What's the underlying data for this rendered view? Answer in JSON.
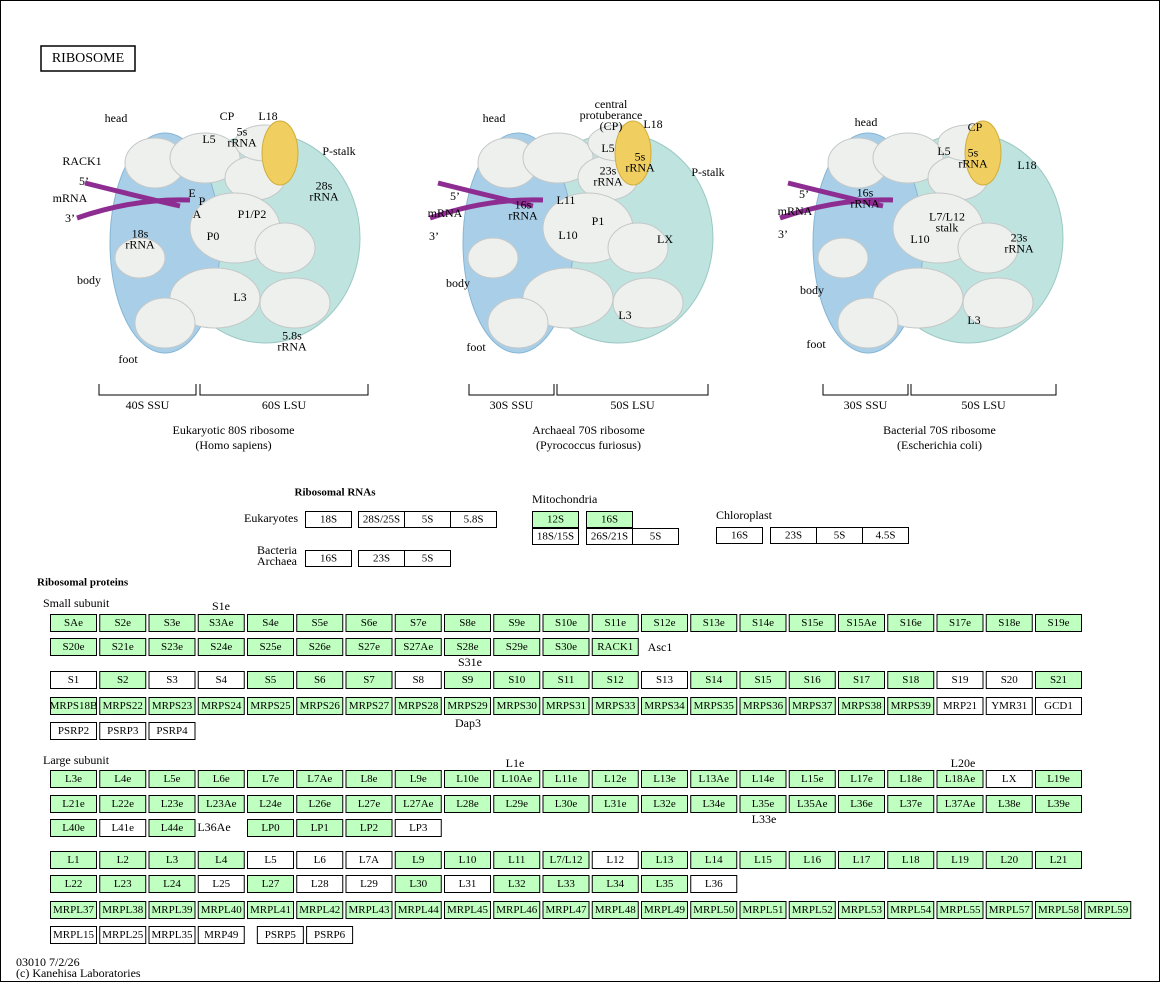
{
  "title": "RIBOSOME",
  "illustrations": [
    {
      "labels": [
        [
          "head"
        ],
        [
          "CP"
        ],
        [
          "L18"
        ],
        [
          "L5"
        ],
        [
          "5s",
          "rRNA"
        ],
        [
          "P-stalk"
        ],
        [
          "RACK1"
        ],
        [
          "5’"
        ],
        [
          "mRNA"
        ],
        [
          "3’"
        ],
        [
          "E"
        ],
        [
          "P"
        ],
        [
          "A"
        ],
        [
          "28s",
          "rRNA"
        ],
        [
          "P1/P2"
        ],
        [
          "P0"
        ],
        [
          "18s",
          "rRNA"
        ],
        [
          "body"
        ],
        [
          "L3"
        ],
        [
          "5.8s",
          "rRNA"
        ],
        [
          "foot"
        ]
      ],
      "subunits": [
        "40S SSU",
        "60S LSU"
      ],
      "name": "Eukaryotic 80S ribosome",
      "species": "(Homo sapiens)"
    },
    {
      "labels": [
        [
          "head"
        ],
        [
          "central",
          "protuberance",
          "(CP)"
        ],
        [
          "L18"
        ],
        [
          "L5"
        ],
        [
          "5s",
          "rRNA"
        ],
        [
          "23s",
          "rRNA"
        ],
        [
          "P-stalk"
        ],
        [
          "5’"
        ],
        [
          "16s",
          "rRNA"
        ],
        [
          "mRNA"
        ],
        [
          "L11"
        ],
        [
          "3’"
        ],
        [
          "P1"
        ],
        [
          "L10"
        ],
        [
          "LX"
        ],
        [
          "body"
        ],
        [
          "L3"
        ],
        [
          "foot"
        ]
      ],
      "subunits": [
        "30S SSU",
        "50S LSU"
      ],
      "name": "Archaeal 70S ribosome",
      "species": "(Pyrococcus furiosus)"
    },
    {
      "labels": [
        [
          "head"
        ],
        [
          "CP"
        ],
        [
          "L5"
        ],
        [
          "5s",
          "rRNA"
        ],
        [
          "L18"
        ],
        [
          "5’"
        ],
        [
          "16s",
          "rRNA"
        ],
        [
          "mRNA"
        ],
        [
          "L7/L12",
          "stalk"
        ],
        [
          "3’"
        ],
        [
          "L10"
        ],
        [
          "23s",
          "rRNA"
        ],
        [
          "body"
        ],
        [
          "L3"
        ],
        [
          "foot"
        ]
      ],
      "subunits": [
        "30S SSU",
        "50S LSU"
      ],
      "name": "Bacterial 70S ribosome",
      "species": "(Escherichia coli)"
    }
  ],
  "rna": {
    "heading": "Ribosomal RNAs",
    "eukaryotes": "Eukaryotes",
    "bacteria": [
      "Bacteria",
      "Archaea"
    ],
    "mitochondria": "Mitochondria",
    "chloroplast": "Chloroplast",
    "boxes": [
      [
        "18S",
        "#ffffff"
      ],
      [
        "28S/25S",
        "#ffffff"
      ],
      [
        "5S",
        "#ffffff"
      ],
      [
        "5.8S",
        "#ffffff"
      ],
      [
        "16S",
        "#ffffff"
      ],
      [
        "23S",
        "#ffffff"
      ],
      [
        "5S",
        "#ffffff"
      ],
      [
        "12S",
        "#bfffbf"
      ],
      [
        "16S",
        "#bfffbf"
      ],
      [
        "18S/15S",
        "#ffffff"
      ],
      [
        "26S/21S",
        "#ffffff"
      ],
      [
        "5S",
        "#ffffff"
      ],
      [
        "16S",
        "#ffffff"
      ],
      [
        "23S",
        "#ffffff"
      ],
      [
        "5S",
        "#ffffff"
      ],
      [
        "4.5S",
        "#ffffff"
      ]
    ]
  },
  "proteins": {
    "heading": "Ribosomal proteins",
    "small": "Small subunit",
    "large": "Large subunit",
    "rows": [
      [
        [
          "SAe",
          "#bfffbf"
        ],
        [
          "S2e",
          "#bfffbf"
        ],
        [
          "S3e",
          "#bfffbf"
        ],
        [
          "S3Ae",
          "#bfffbf"
        ],
        [
          "S4e",
          "#bfffbf"
        ],
        [
          "S5e",
          "#bfffbf"
        ],
        [
          "S6e",
          "#bfffbf"
        ],
        [
          "S7e",
          "#bfffbf"
        ],
        [
          "S8e",
          "#bfffbf"
        ],
        [
          "S9e",
          "#bfffbf"
        ],
        [
          "S10e",
          "#bfffbf"
        ],
        [
          "S11e",
          "#bfffbf"
        ],
        [
          "S12e",
          "#bfffbf"
        ],
        [
          "S13e",
          "#bfffbf"
        ],
        [
          "S14e",
          "#bfffbf"
        ],
        [
          "S15e",
          "#bfffbf"
        ],
        [
          "S15Ae",
          "#bfffbf"
        ],
        [
          "S16e",
          "#bfffbf"
        ],
        [
          "S17e",
          "#bfffbf"
        ],
        [
          "S18e",
          "#bfffbf"
        ],
        [
          "S19e",
          "#bfffbf"
        ]
      ],
      [
        [
          "S20e",
          "#bfffbf"
        ],
        [
          "S21e",
          "#bfffbf"
        ],
        [
          "S23e",
          "#bfffbf"
        ],
        [
          "S24e",
          "#bfffbf"
        ],
        [
          "S25e",
          "#bfffbf"
        ],
        [
          "S26e",
          "#bfffbf"
        ],
        [
          "S27e",
          "#bfffbf"
        ],
        [
          "S27Ae",
          "#bfffbf"
        ],
        [
          "S28e",
          "#bfffbf"
        ],
        [
          "S29e",
          "#bfffbf"
        ],
        [
          "S30e",
          "#bfffbf"
        ],
        [
          "RACK1",
          "#bfffbf"
        ]
      ],
      [
        [
          "S1",
          "#ffffff"
        ],
        [
          "S2",
          "#bfffbf"
        ],
        [
          "S3",
          "#ffffff"
        ],
        [
          "S4",
          "#ffffff"
        ],
        [
          "S5",
          "#bfffbf"
        ],
        [
          "S6",
          "#bfffbf"
        ],
        [
          "S7",
          "#bfffbf"
        ],
        [
          "S8",
          "#ffffff"
        ],
        [
          "S9",
          "#bfffbf"
        ],
        [
          "S10",
          "#bfffbf"
        ],
        [
          "S11",
          "#bfffbf"
        ],
        [
          "S12",
          "#bfffbf"
        ],
        [
          "S13",
          "#ffffff"
        ],
        [
          "S14",
          "#bfffbf"
        ],
        [
          "S15",
          "#bfffbf"
        ],
        [
          "S16",
          "#bfffbf"
        ],
        [
          "S17",
          "#bfffbf"
        ],
        [
          "S18",
          "#bfffbf"
        ],
        [
          "S19",
          "#ffffff"
        ],
        [
          "S20",
          "#ffffff"
        ],
        [
          "S21",
          "#bfffbf"
        ]
      ],
      [
        [
          "MRPS18B",
          "#bfffbf"
        ],
        [
          "MRPS22",
          "#bfffbf"
        ],
        [
          "MRPS23",
          "#bfffbf"
        ],
        [
          "MRPS24",
          "#bfffbf"
        ],
        [
          "MRPS25",
          "#bfffbf"
        ],
        [
          "MRPS26",
          "#bfffbf"
        ],
        [
          "MRPS27",
          "#bfffbf"
        ],
        [
          "MRPS28",
          "#bfffbf"
        ],
        [
          "MRPS29",
          "#bfffbf"
        ],
        [
          "MRPS30",
          "#bfffbf"
        ],
        [
          "MRPS31",
          "#bfffbf"
        ],
        [
          "MRPS33",
          "#bfffbf"
        ],
        [
          "MRPS34",
          "#bfffbf"
        ],
        [
          "MRPS35",
          "#bfffbf"
        ],
        [
          "MRPS36",
          "#bfffbf"
        ],
        [
          "MRPS37",
          "#bfffbf"
        ],
        [
          "MRPS38",
          "#bfffbf"
        ],
        [
          "MRPS39",
          "#bfffbf"
        ],
        [
          "MRP21",
          "#ffffff"
        ],
        [
          "YMR31",
          "#ffffff"
        ],
        [
          "GCD1",
          "#ffffff"
        ]
      ],
      [
        [
          "PSRP2",
          "#ffffff"
        ],
        [
          "PSRP3",
          "#ffffff"
        ],
        [
          "PSRP4",
          "#ffffff"
        ]
      ],
      [
        [
          "L3e",
          "#bfffbf"
        ],
        [
          "L4e",
          "#bfffbf"
        ],
        [
          "L5e",
          "#bfffbf"
        ],
        [
          "L6e",
          "#bfffbf"
        ],
        [
          "L7e",
          "#bfffbf"
        ],
        [
          "L7Ae",
          "#bfffbf"
        ],
        [
          "L8e",
          "#bfffbf"
        ],
        [
          "L9e",
          "#bfffbf"
        ],
        [
          "L10e",
          "#bfffbf"
        ],
        [
          "L10Ae",
          "#bfffbf"
        ],
        [
          "L11e",
          "#bfffbf"
        ],
        [
          "L12e",
          "#bfffbf"
        ],
        [
          "L13e",
          "#bfffbf"
        ],
        [
          "L13Ae",
          "#bfffbf"
        ],
        [
          "L14e",
          "#bfffbf"
        ],
        [
          "L15e",
          "#bfffbf"
        ],
        [
          "L17e",
          "#bfffbf"
        ],
        [
          "L18e",
          "#bfffbf"
        ],
        [
          "L18Ae",
          "#bfffbf"
        ],
        [
          "LX",
          "#ffffff"
        ],
        [
          "L19e",
          "#bfffbf"
        ]
      ],
      [
        [
          "L21e",
          "#bfffbf"
        ],
        [
          "L22e",
          "#bfffbf"
        ],
        [
          "L23e",
          "#bfffbf"
        ],
        [
          "L23Ae",
          "#bfffbf"
        ],
        [
          "L24e",
          "#bfffbf"
        ],
        [
          "L26e",
          "#bfffbf"
        ],
        [
          "L27e",
          "#bfffbf"
        ],
        [
          "L27Ae",
          "#bfffbf"
        ],
        [
          "L28e",
          "#bfffbf"
        ],
        [
          "L29e",
          "#bfffbf"
        ],
        [
          "L30e",
          "#bfffbf"
        ],
        [
          "L31e",
          "#bfffbf"
        ],
        [
          "L32e",
          "#bfffbf"
        ],
        [
          "L34e",
          "#bfffbf"
        ],
        [
          "L35e",
          "#bfffbf"
        ],
        [
          "L35Ae",
          "#bfffbf"
        ],
        [
          "L36e",
          "#bfffbf"
        ],
        [
          "L37e",
          "#bfffbf"
        ],
        [
          "L37Ae",
          "#bfffbf"
        ],
        [
          "L38e",
          "#bfffbf"
        ],
        [
          "L39e",
          "#bfffbf"
        ]
      ],
      [
        [
          "L40e",
          "#bfffbf"
        ],
        [
          "L41e",
          "#ffffff"
        ],
        [
          "L44e",
          "#bfffbf"
        ],
        [
          "LP0",
          "#bfffbf"
        ],
        [
          "LP1",
          "#bfffbf"
        ],
        [
          "LP2",
          "#bfffbf"
        ],
        [
          "LP3",
          "#ffffff"
        ]
      ],
      [
        [
          "L1",
          "#bfffbf"
        ],
        [
          "L2",
          "#bfffbf"
        ],
        [
          "L3",
          "#bfffbf"
        ],
        [
          "L4",
          "#bfffbf"
        ],
        [
          "L5",
          "#ffffff"
        ],
        [
          "L6",
          "#ffffff"
        ],
        [
          "L7A",
          "#ffffff"
        ],
        [
          "L9",
          "#bfffbf"
        ],
        [
          "L10",
          "#bfffbf"
        ],
        [
          "L11",
          "#bfffbf"
        ],
        [
          "L7/L12",
          "#bfffbf"
        ],
        [
          "L12",
          "#ffffff"
        ],
        [
          "L13",
          "#bfffbf"
        ],
        [
          "L14",
          "#bfffbf"
        ],
        [
          "L15",
          "#bfffbf"
        ],
        [
          "L16",
          "#bfffbf"
        ],
        [
          "L17",
          "#bfffbf"
        ],
        [
          "L18",
          "#bfffbf"
        ],
        [
          "L19",
          "#bfffbf"
        ],
        [
          "L20",
          "#bfffbf"
        ],
        [
          "L21",
          "#bfffbf"
        ]
      ],
      [
        [
          "L22",
          "#bfffbf"
        ],
        [
          "L23",
          "#bfffbf"
        ],
        [
          "L24",
          "#bfffbf"
        ],
        [
          "L25",
          "#ffffff"
        ],
        [
          "L27",
          "#bfffbf"
        ],
        [
          "L28",
          "#ffffff"
        ],
        [
          "L29",
          "#ffffff"
        ],
        [
          "L30",
          "#bfffbf"
        ],
        [
          "L31",
          "#ffffff"
        ],
        [
          "L32",
          "#bfffbf"
        ],
        [
          "L33",
          "#bfffbf"
        ],
        [
          "L34",
          "#bfffbf"
        ],
        [
          "L35",
          "#bfffbf"
        ],
        [
          "L36",
          "#ffffff"
        ]
      ],
      [
        [
          "MRPL37",
          "#bfffbf"
        ],
        [
          "MRPL38",
          "#bfffbf"
        ],
        [
          "MRPL39",
          "#bfffbf"
        ],
        [
          "MRPL40",
          "#bfffbf"
        ],
        [
          "MRPL41",
          "#bfffbf"
        ],
        [
          "MRPL42",
          "#bfffbf"
        ],
        [
          "MRPL43",
          "#bfffbf"
        ],
        [
          "MRPL44",
          "#bfffbf"
        ],
        [
          "MRPL45",
          "#bfffbf"
        ],
        [
          "MRPL46",
          "#bfffbf"
        ],
        [
          "MRPL47",
          "#bfffbf"
        ],
        [
          "MRPL48",
          "#bfffbf"
        ],
        [
          "MRPL49",
          "#bfffbf"
        ],
        [
          "MRPL50",
          "#bfffbf"
        ],
        [
          "MRPL51",
          "#bfffbf"
        ],
        [
          "MRPL52",
          "#bfffbf"
        ],
        [
          "MRPL53",
          "#bfffbf"
        ],
        [
          "MRPL54",
          "#bfffbf"
        ],
        [
          "MRPL55",
          "#bfffbf"
        ],
        [
          "MRPL57",
          "#bfffbf"
        ],
        [
          "MRPL58",
          "#bfffbf"
        ],
        [
          "MRPL59",
          "#bfffbf"
        ]
      ],
      [
        [
          "MRPL15",
          "#ffffff"
        ],
        [
          "MRPL25",
          "#ffffff"
        ],
        [
          "MRPL35",
          "#ffffff"
        ],
        [
          "MRP49",
          "#ffffff"
        ],
        [
          "PSRP5",
          "#ffffff"
        ],
        [
          "PSRP6",
          "#ffffff"
        ]
      ]
    ],
    "notes": [
      "S1e",
      "Asc1",
      "S31e",
      "Dap3",
      "L1e",
      "L20e",
      "L33e",
      "L36Ae"
    ]
  },
  "footer": {
    "code": "03010 7/2/26",
    "copyright": "(c) Kanehisa Laboratories"
  }
}
